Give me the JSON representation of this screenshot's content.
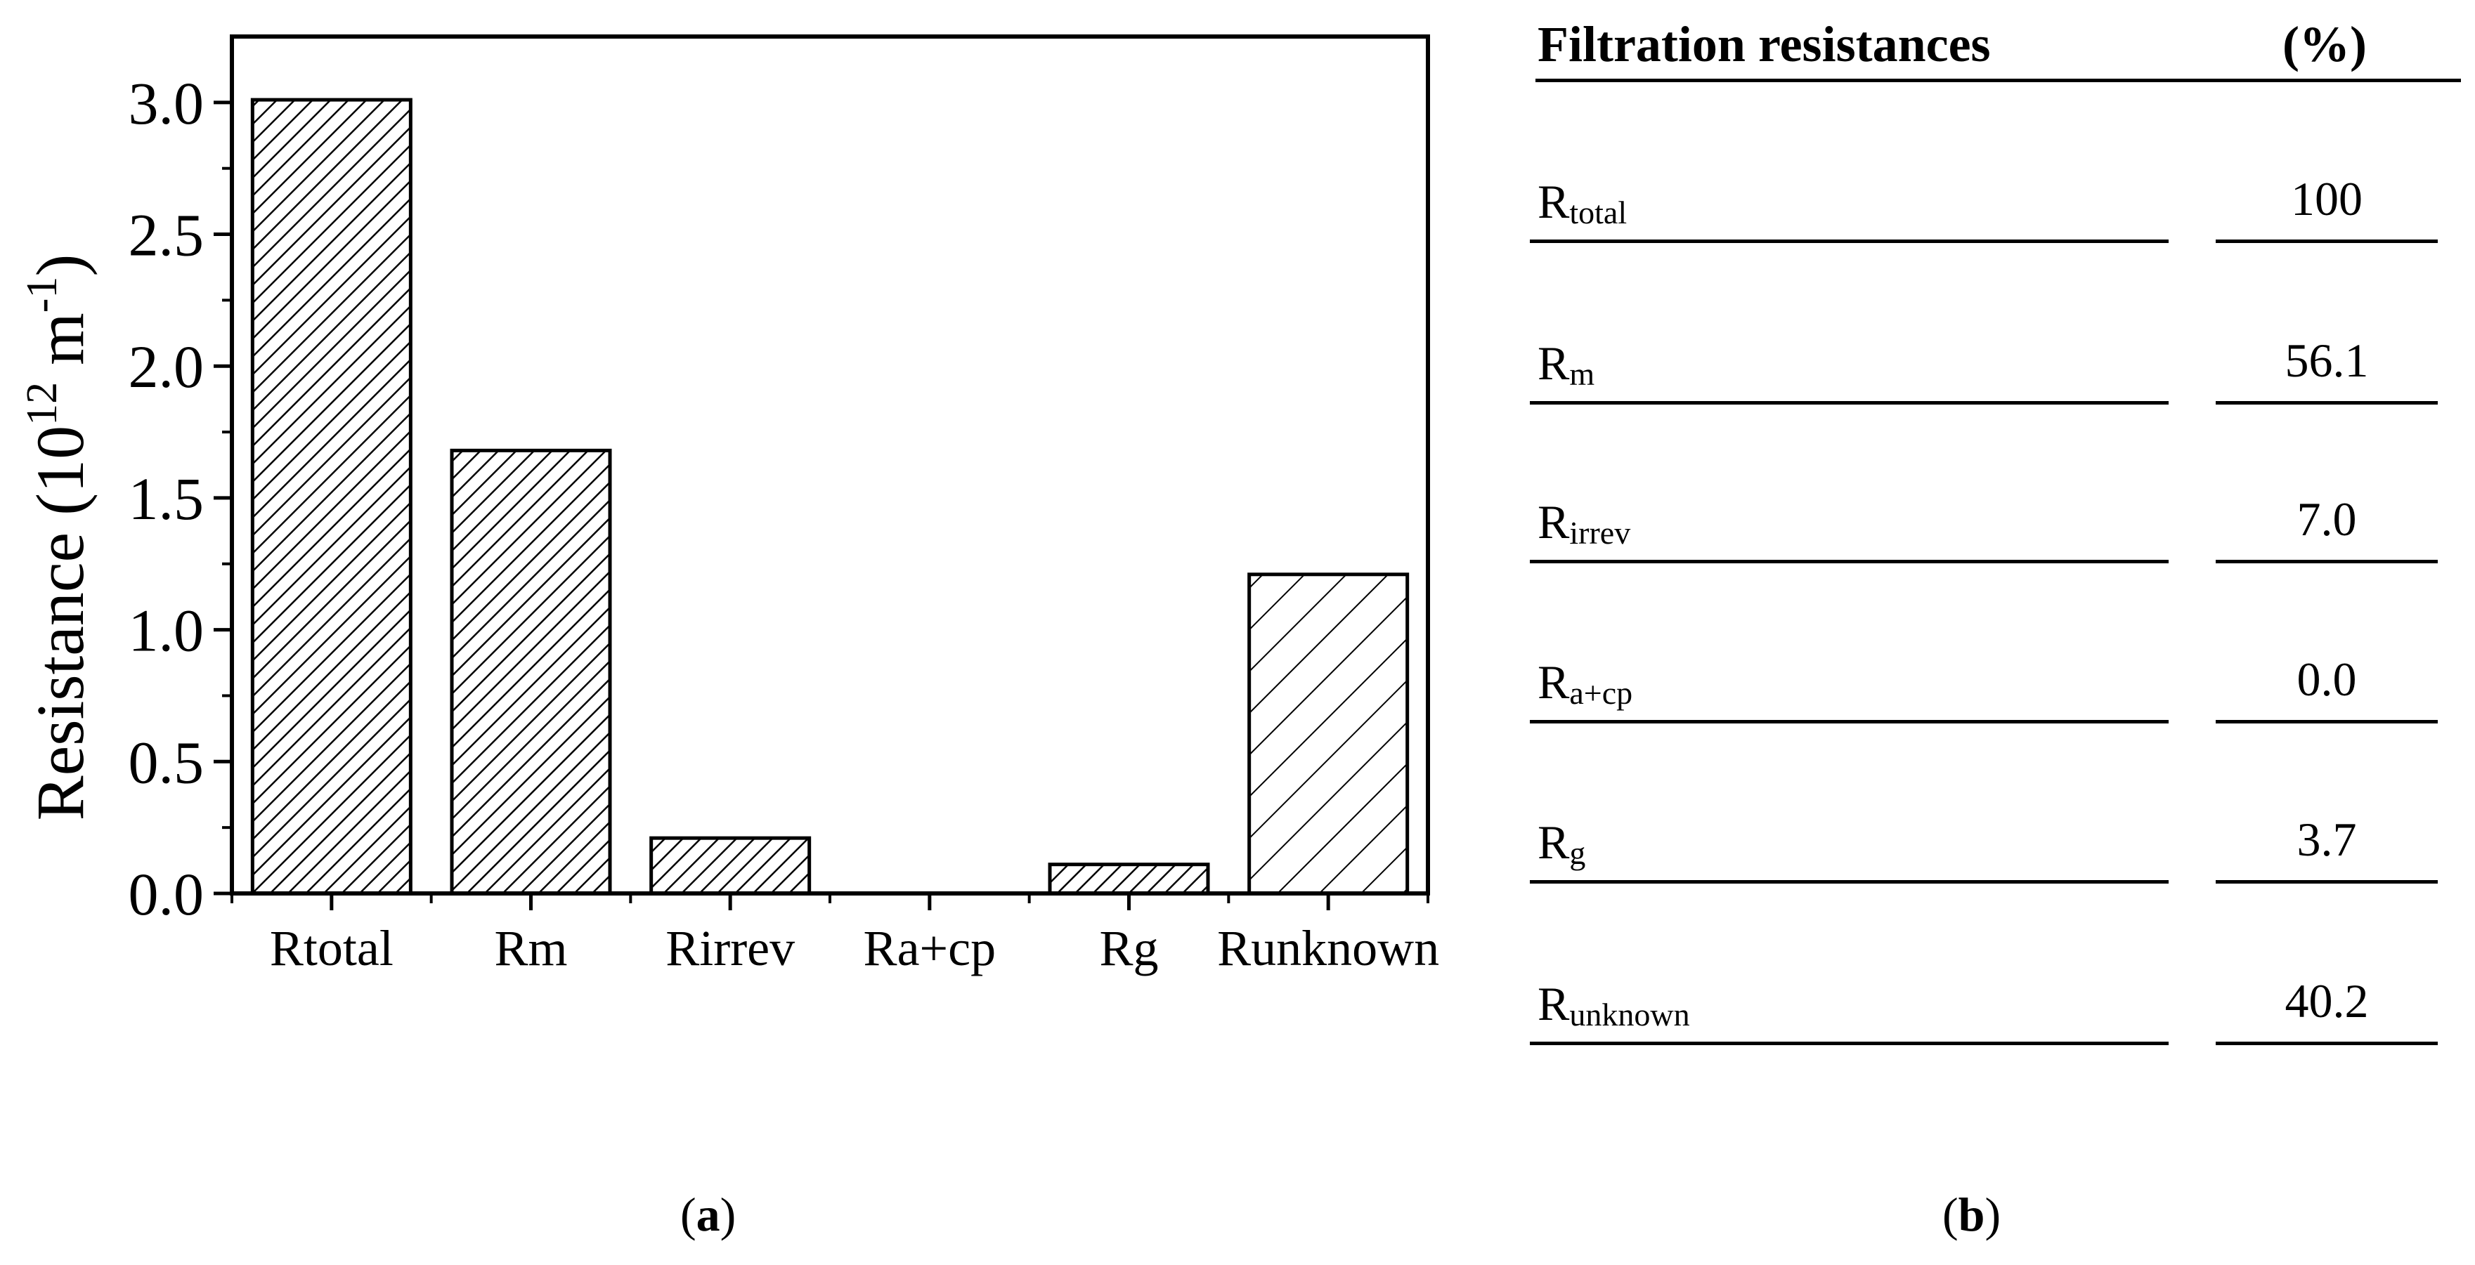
{
  "chart_data": {
    "type": "bar",
    "categories": [
      "Rtotal",
      "Rm",
      "Rirrev",
      "Ra+cp",
      "Rg",
      "Runknown"
    ],
    "values": [
      3.01,
      1.68,
      0.21,
      0.0,
      0.11,
      1.21
    ],
    "ylabel": "Resistance (10",
    "ylabel_sup1": "12",
    "ylabel_mid": " m",
    "ylabel_sup2": "-1",
    "ylabel_end": ")",
    "ylim": [
      0,
      3.25
    ],
    "yticks": [
      "0.0",
      "0.5",
      "1.0",
      "1.5",
      "2.0",
      "2.5",
      "3.0"
    ],
    "ytick_values": [
      0,
      0.5,
      1.0,
      1.5,
      2.0,
      2.5,
      3.0
    ],
    "fill": "hatched",
    "grid": false
  },
  "caption_a": {
    "open": "(",
    "letter": "a",
    "close": ")"
  },
  "caption_b": {
    "open": "(",
    "letter": "b",
    "close": ")"
  },
  "table": {
    "header_name": "Filtration resistances",
    "header_value": "(%)",
    "rows": [
      {
        "base": "R",
        "sub": "total",
        "value": "100"
      },
      {
        "base": "R",
        "sub": "m",
        "value": "56.1"
      },
      {
        "base": "R",
        "sub": "irrev",
        "value": "7.0"
      },
      {
        "base": "R",
        "sub": "a+cp",
        "value": "0.0"
      },
      {
        "base": "R",
        "sub": "g",
        "value": "3.7"
      },
      {
        "base": "R",
        "sub": "unknown",
        "value": "40.2"
      }
    ]
  }
}
